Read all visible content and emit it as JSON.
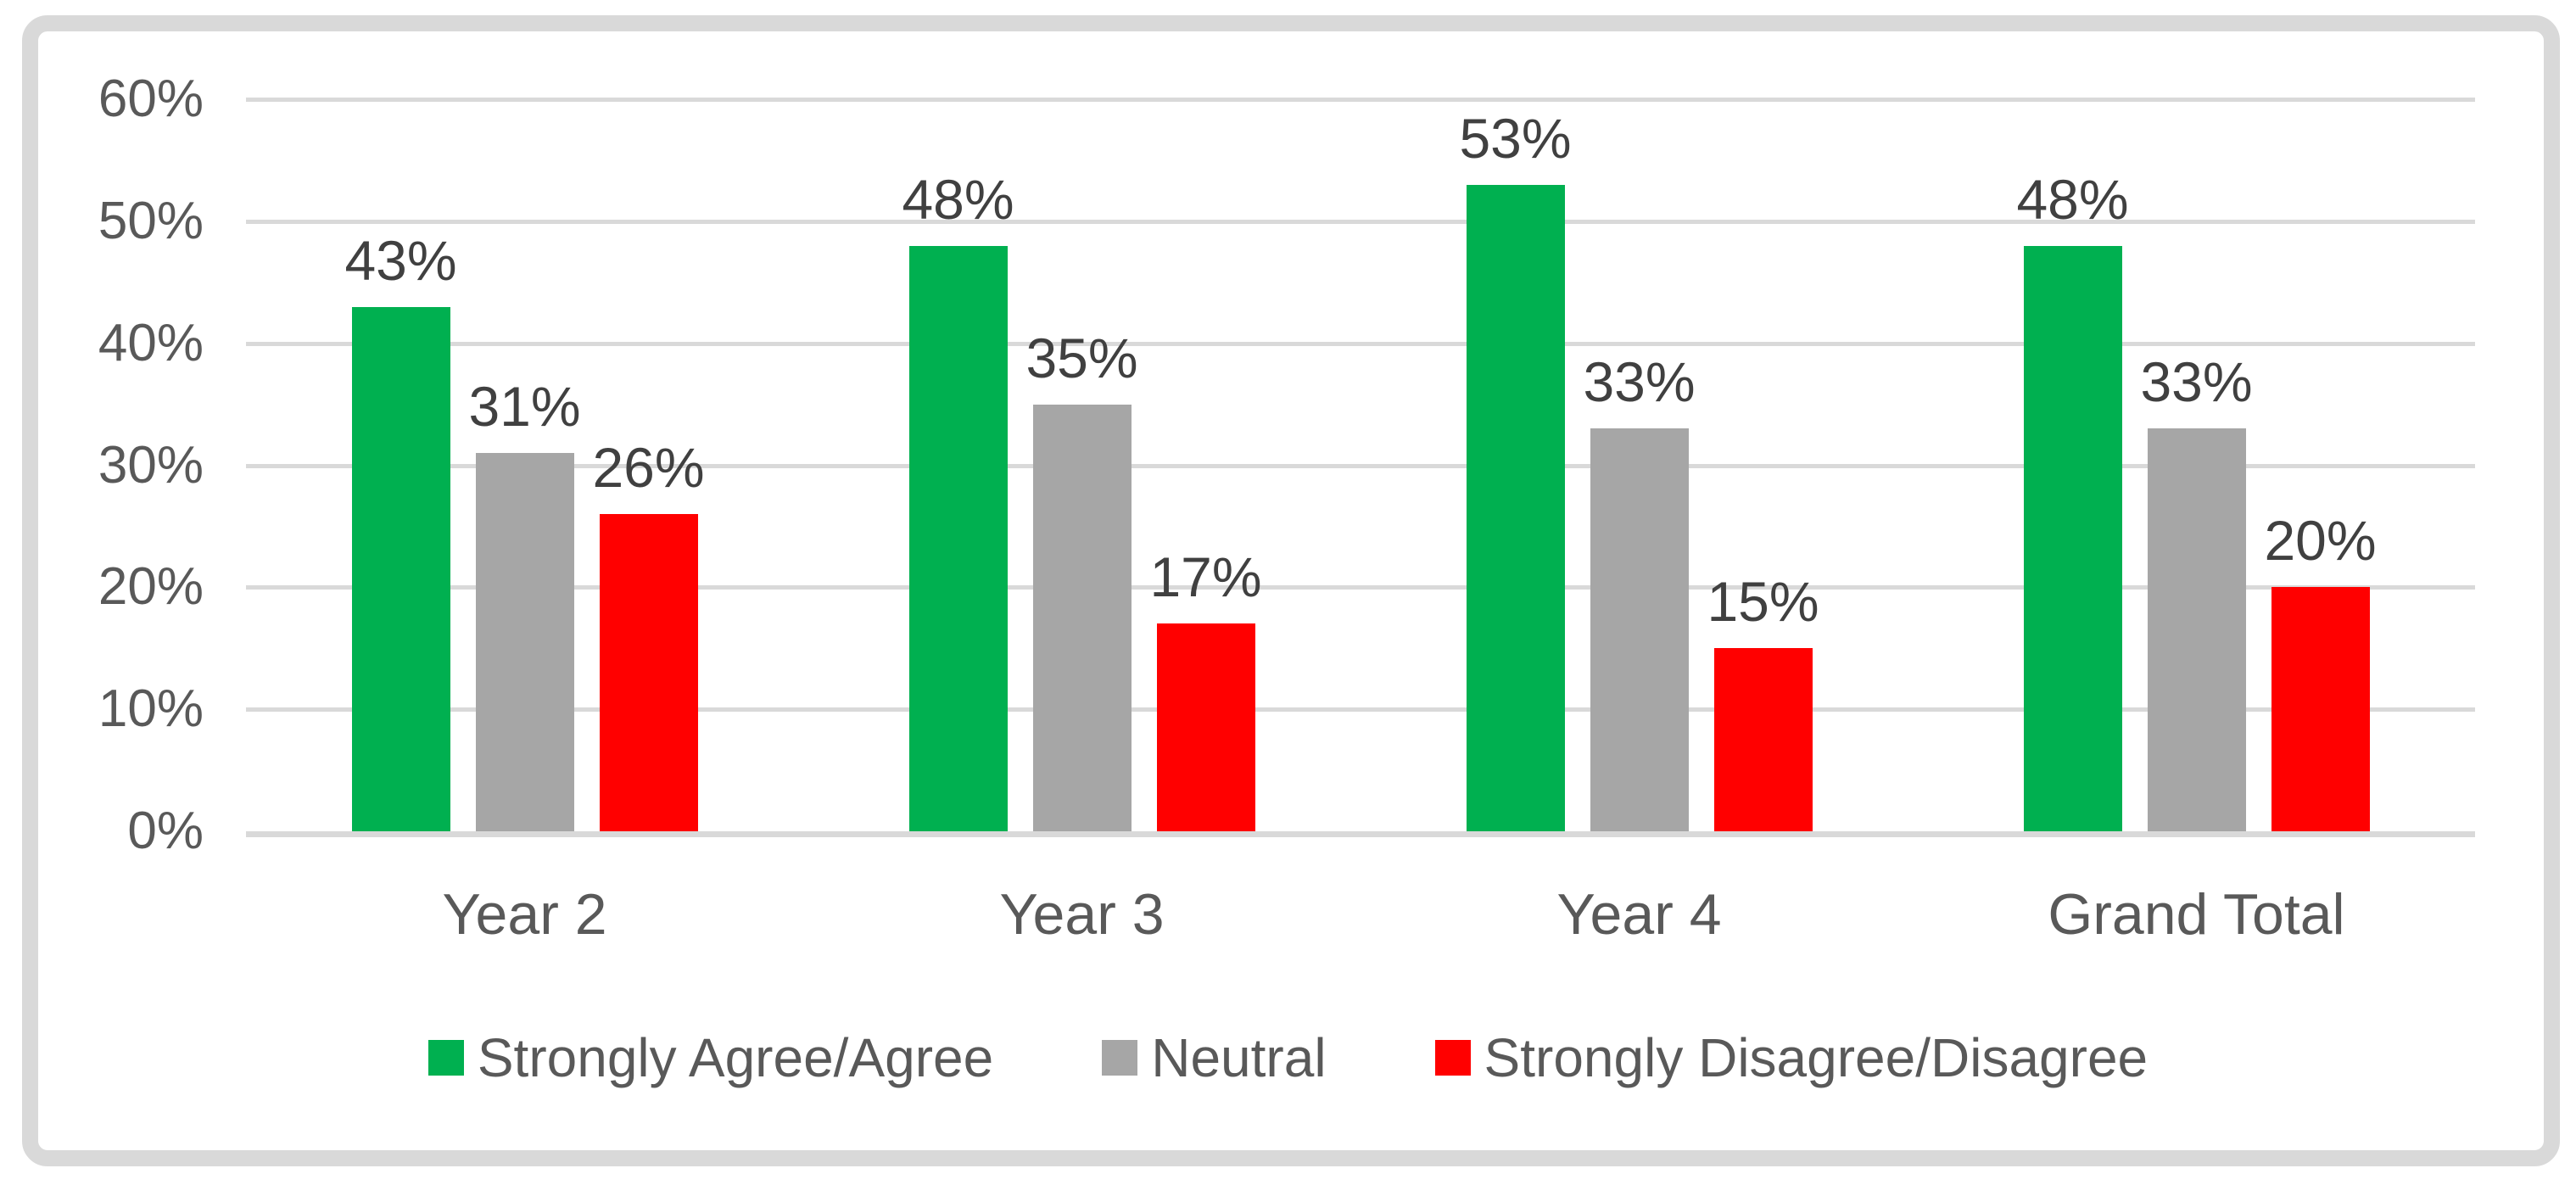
{
  "chart_data": {
    "type": "bar",
    "title": "",
    "categories": [
      "Year 2",
      "Year 3",
      "Year 4",
      "Grand Total"
    ],
    "series": [
      {
        "name": "Strongly Agree/Agree",
        "color": "#00B050",
        "values": [
          43,
          48,
          53,
          48
        ],
        "labels": [
          "43%",
          "48%",
          "53%",
          "48%"
        ]
      },
      {
        "name": "Neutral",
        "color": "#A6A6A6",
        "values": [
          31,
          35,
          33,
          33
        ],
        "labels": [
          "31%",
          "35%",
          "33%",
          "33%"
        ]
      },
      {
        "name": "Strongly Disagree/Disagree",
        "color": "#FF0000",
        "values": [
          26,
          17,
          15,
          20
        ],
        "labels": [
          "26%",
          "17%",
          "15%",
          "20%"
        ]
      }
    ],
    "y_axis": {
      "min": 0,
      "max": 60,
      "tick_step": 10,
      "tick_labels": [
        "0%",
        "10%",
        "20%",
        "30%",
        "40%",
        "50%",
        "60%"
      ],
      "format": "percent"
    },
    "grid": true,
    "legend_position": "bottom"
  },
  "styles": {
    "tick_label_color": "#595959",
    "data_label_color": "#404040",
    "category_label_color": "#595959",
    "legend_label_color": "#595959",
    "gridline_color": "#D9D9D9",
    "axis_line_color": "#D9D9D9",
    "frame_border_color": "#D9D9D9",
    "background_color": "#FFFFFF"
  }
}
